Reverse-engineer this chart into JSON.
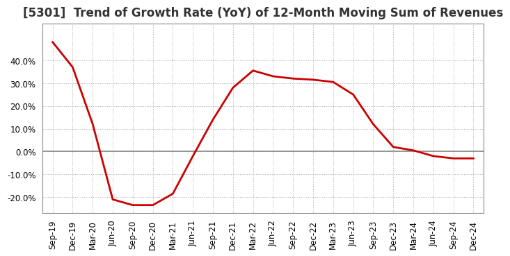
{
  "title": "[5301]  Trend of Growth Rate (YoY) of 12-Month Moving Sum of Revenues",
  "line_color": "#cc0000",
  "background_color": "#ffffff",
  "plot_bg_color": "#ffffff",
  "grid_color": "#aaaaaa",
  "zero_line_color": "#888888",
  "x_labels": [
    "Sep-19",
    "Dec-19",
    "Mar-20",
    "Jun-20",
    "Sep-20",
    "Dec-20",
    "Mar-21",
    "Jun-21",
    "Sep-21",
    "Dec-21",
    "Mar-22",
    "Jun-22",
    "Sep-22",
    "Dec-22",
    "Mar-23",
    "Jun-23",
    "Sep-23",
    "Dec-23",
    "Mar-24",
    "Jun-24",
    "Sep-24",
    "Dec-24"
  ],
  "y_values": [
    0.48,
    0.37,
    0.12,
    -0.21,
    -0.235,
    -0.235,
    -0.185,
    -0.02,
    0.14,
    0.28,
    0.355,
    0.33,
    0.32,
    0.315,
    0.305,
    0.25,
    0.12,
    0.02,
    0.005,
    -0.02,
    -0.03,
    -0.03
  ],
  "ylim": [
    -0.27,
    0.56
  ],
  "yticks": [
    -0.2,
    -0.1,
    0.0,
    0.1,
    0.2,
    0.3,
    0.4
  ],
  "title_fontsize": 12,
  "tick_fontsize": 8.5,
  "line_width": 2.0
}
